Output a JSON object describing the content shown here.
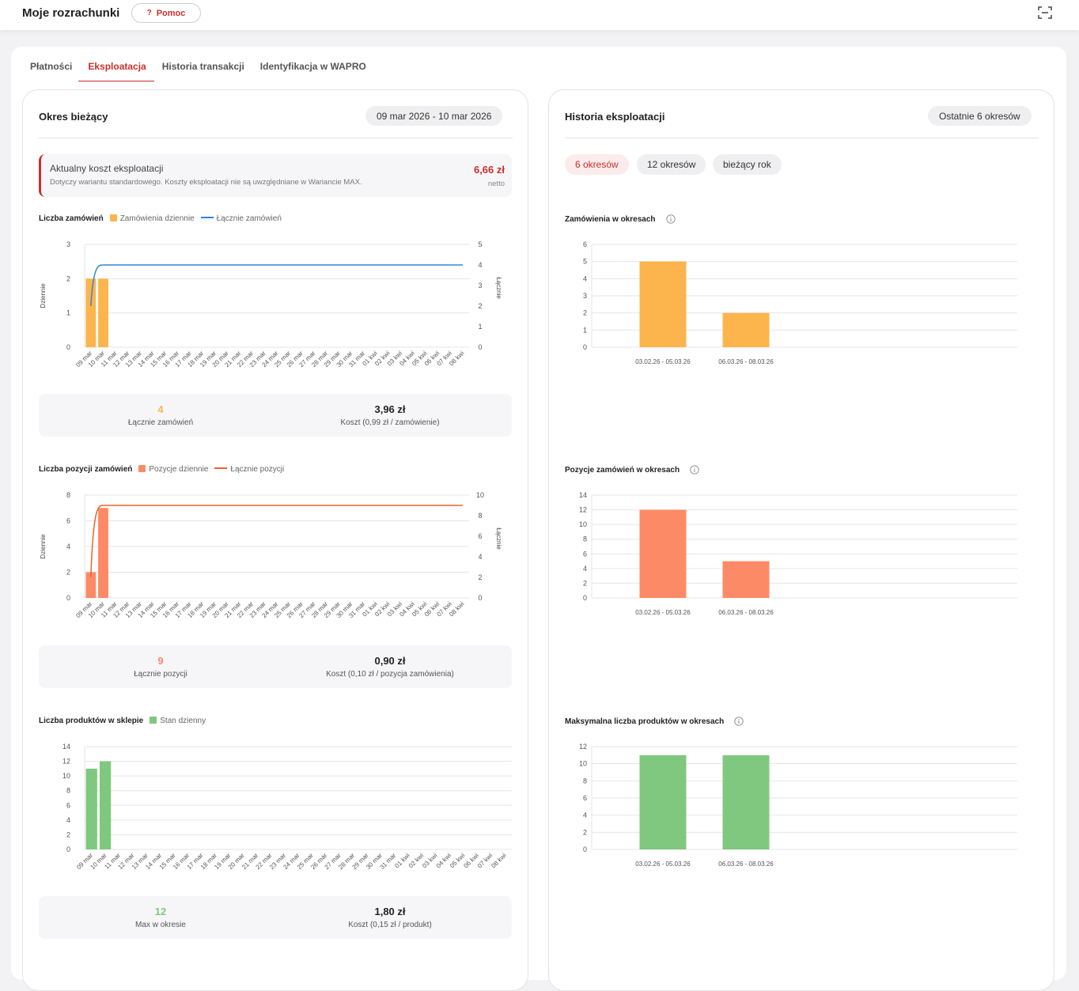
{
  "header": {
    "title": "Moje rozrachunki",
    "help_label": "Pomoc",
    "help_glyph": "?"
  },
  "tabs": [
    {
      "label": "Płatności"
    },
    {
      "label": "Eksploatacja"
    },
    {
      "label": "Historia transakcji"
    },
    {
      "label": "Identyfikacja w WAPRO"
    }
  ],
  "current": {
    "title": "Okres bieżący",
    "date_range": "09 mar 2026 - 10 mar 2026",
    "cost_title": "Aktualny koszt eksploatacji",
    "cost_note": "Dotyczy wariantu standardowego. Koszty eksploatacji nie są uwzględniane w Wariancie MAX.",
    "cost_value": "6,66 zł",
    "cost_unit": "netto"
  },
  "history": {
    "title": "Historia eksploatacji",
    "range_label": "Ostatnie 6 okresów",
    "segments": [
      "6 okresów",
      "12 okresów",
      "bieżący rok"
    ]
  },
  "days": [
    "09 mar",
    "10 mar",
    "11 mar",
    "12 mar",
    "13 mar",
    "14 mar",
    "15 mar",
    "16 mar",
    "17 mar",
    "18 mar",
    "19 mar",
    "20 mar",
    "21 mar",
    "22 mar",
    "23 mar",
    "24 mar",
    "25 mar",
    "26 mar",
    "27 mar",
    "28 mar",
    "29 mar",
    "30 mar",
    "31 mar",
    "01 kwi",
    "02 kwi",
    "03 kwi",
    "04 kwi",
    "05 kwi",
    "06 kwi",
    "07 kwi",
    "08 kwi"
  ],
  "periods": [
    "03.02.26 - 05.03.26",
    "06.03.26 - 08.03.26"
  ],
  "chart_data": [
    {
      "type": "bar",
      "title": "Liczba zamówień",
      "ylabel": "Dziennie",
      "y2label": "Łącznie",
      "ylim": [
        0,
        3
      ],
      "y2lim": [
        0,
        5
      ],
      "yticks": [
        "0",
        "1",
        "2",
        "3"
      ],
      "y2ticks": [
        "0",
        "1",
        "2",
        "3",
        "4",
        "5"
      ],
      "series": [
        {
          "name": "Zamówienia dziennie",
          "kind": "bar",
          "color": "#fbb54c",
          "values": [
            2,
            2
          ]
        },
        {
          "name": "Łącznie zamówień",
          "kind": "line",
          "color": "#2e86de",
          "values": [
            2,
            4,
            4,
            4,
            4,
            4,
            4,
            4,
            4,
            4,
            4,
            4,
            4,
            4,
            4,
            4,
            4,
            4,
            4,
            4,
            4,
            4,
            4,
            4,
            4,
            4,
            4,
            4,
            4,
            4,
            4
          ]
        }
      ],
      "summary": {
        "value1": "4",
        "label1": "Łącznie zamówień",
        "value2": "3,96 zł",
        "label2": "Koszt (0,99 zł / zamówienie)"
      }
    },
    {
      "type": "bar",
      "title": "Liczba pozycji zamówień",
      "ylabel": "Dziennie",
      "y2label": "Łącznie",
      "ylim": [
        0,
        8
      ],
      "y2lim": [
        0,
        10
      ],
      "yticks": [
        "0",
        "2",
        "4",
        "6",
        "8"
      ],
      "y2ticks": [
        "0",
        "2",
        "4",
        "6",
        "8",
        "10"
      ],
      "series": [
        {
          "name": "Pozycje dziennie",
          "kind": "bar",
          "color": "#fd8a66",
          "values": [
            2,
            7
          ]
        },
        {
          "name": "Łącznie pozycji",
          "kind": "line",
          "color": "#e8642c",
          "values": [
            2,
            9,
            9,
            9,
            9,
            9,
            9,
            9,
            9,
            9,
            9,
            9,
            9,
            9,
            9,
            9,
            9,
            9,
            9,
            9,
            9,
            9,
            9,
            9,
            9,
            9,
            9,
            9,
            9,
            9,
            9
          ]
        }
      ],
      "summary": {
        "value1": "9",
        "label1": "Łącznie pozycji",
        "value2": "0,90 zł",
        "label2": "Koszt (0,10 zł / pozycja zamówienia)"
      }
    },
    {
      "type": "bar",
      "title": "Liczba produktów w sklepie",
      "ylim": [
        0,
        14
      ],
      "yticks": [
        "0",
        "2",
        "4",
        "6",
        "8",
        "10",
        "12",
        "14"
      ],
      "series": [
        {
          "name": "Stan dzienny",
          "kind": "bar",
          "color": "#80c77f",
          "values": [
            11,
            12
          ]
        }
      ],
      "summary": {
        "value1": "12",
        "label1": "Max w okresie",
        "value2": "1,80 zł",
        "label2": "Koszt (0,15 zł / produkt)"
      }
    },
    {
      "type": "bar",
      "title": "Zamówienia w okresach",
      "ylim": [
        0,
        6
      ],
      "yticks": [
        "0",
        "1",
        "2",
        "3",
        "4",
        "5",
        "6"
      ],
      "series": [
        {
          "name": "",
          "kind": "bar",
          "color": "#fbb54c",
          "values": [
            5,
            2
          ]
        }
      ]
    },
    {
      "type": "bar",
      "title": "Pozycje zamówień w okresach",
      "ylim": [
        0,
        14
      ],
      "yticks": [
        "0",
        "2",
        "4",
        "6",
        "8",
        "10",
        "12",
        "14"
      ],
      "series": [
        {
          "name": "",
          "kind": "bar",
          "color": "#fd8a66",
          "values": [
            12,
            5
          ]
        }
      ]
    },
    {
      "type": "bar",
      "title": "Maksymalna liczba produktów w okresach",
      "ylim": [
        0,
        12
      ],
      "yticks": [
        "0",
        "2",
        "4",
        "6",
        "8",
        "10",
        "12"
      ],
      "series": [
        {
          "name": "",
          "kind": "bar",
          "color": "#80c77f",
          "values": [
            11,
            11
          ]
        }
      ]
    }
  ]
}
